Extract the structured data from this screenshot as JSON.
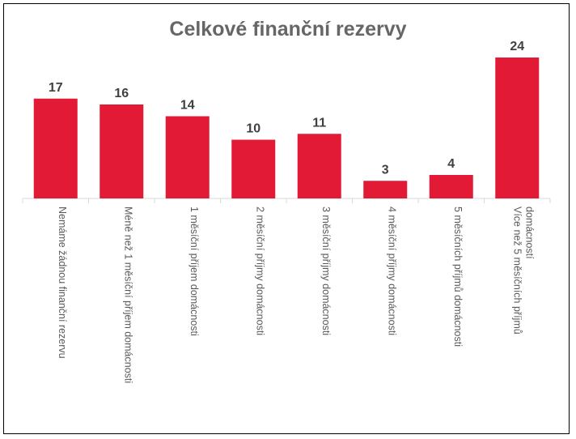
{
  "chart_data": {
    "type": "bar",
    "title": "Celkové finanční rezervy",
    "xlabel": "",
    "ylabel": "",
    "ylim": [
      0,
      26
    ],
    "grid": false,
    "legend": "none",
    "bar_color": "#e31a35",
    "categories": [
      [
        "Nemáme žádnou finanční rezervu"
      ],
      [
        "Méně než 1 měsíční příjem domácnosti"
      ],
      [
        "1 měsíční příjem domácnosti"
      ],
      [
        "2 měsíční příjmy domácnosti"
      ],
      [
        "3 měsíční příjmy domácnosti"
      ],
      [
        "4 měsíční příjmy domácnosti"
      ],
      [
        "5 měsíčních příjmů domácnosti"
      ],
      [
        "Více než 5 měsíčních příjmů",
        "domácností"
      ]
    ],
    "values": [
      17,
      16,
      14,
      10,
      11,
      3,
      4,
      24
    ]
  }
}
